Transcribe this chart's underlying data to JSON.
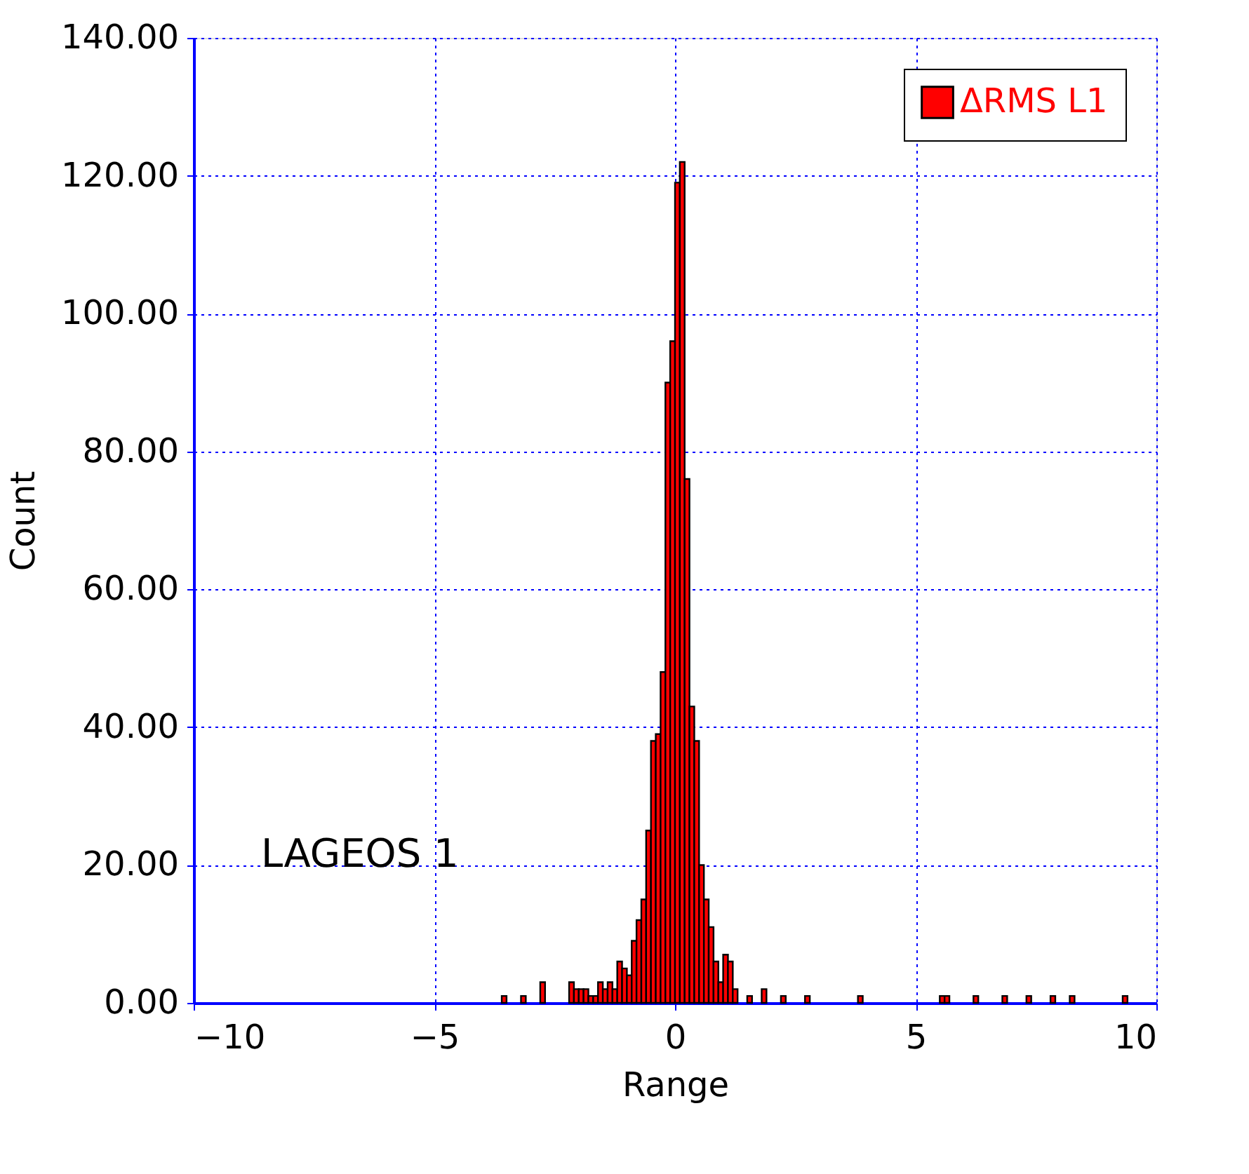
{
  "chart_data": {
    "type": "histogram",
    "xlabel": "Range",
    "ylabel": "Count",
    "bins": [
      -3.6,
      -3.5,
      -3.2,
      -3.1,
      -2.8,
      -2.7,
      -2.2,
      -2.1,
      -2.0,
      -1.9,
      -1.8,
      -1.7,
      -1.6,
      -1.5,
      -1.4,
      -1.3,
      -1.2,
      -1.1,
      -1.0,
      -0.9,
      -0.8,
      -0.7,
      -0.6,
      -0.5,
      -0.4,
      -0.3,
      -0.2,
      -0.1,
      0.0,
      0.1,
      0.2,
      0.3,
      0.4,
      0.5,
      0.6,
      0.7,
      0.8,
      0.9,
      1.0,
      1.1,
      1.2,
      1.3,
      1.5,
      1.6,
      1.8,
      1.9,
      2.2,
      2.3,
      2.7,
      2.8,
      3.8,
      3.9,
      5.5,
      5.6,
      5.7,
      6.2,
      6.3,
      6.8,
      6.9,
      7.3,
      7.4,
      7.8,
      7.9,
      8.2,
      8.3,
      9.3,
      9.4
    ],
    "series": [
      {
        "name": "ΔRMS L1",
        "color": "#ff0000",
        "values": [
          1,
          0,
          1,
          0,
          3,
          0,
          3,
          2,
          2,
          2,
          1,
          1,
          3,
          2,
          3,
          2,
          6,
          5,
          4,
          9,
          12,
          15,
          25,
          38,
          39,
          48,
          90,
          96,
          119,
          122,
          76,
          43,
          38,
          20,
          15,
          11,
          6,
          3,
          7,
          6,
          2,
          0,
          1,
          0,
          2,
          0,
          1,
          0,
          1,
          0,
          1,
          0,
          1,
          1,
          0,
          1,
          0,
          1,
          0,
          1,
          0,
          1,
          0,
          1,
          0,
          1
        ]
      }
    ],
    "xlim": [
      -10,
      10
    ],
    "xticks": [
      -10,
      -5,
      0,
      5,
      10
    ],
    "ylim": [
      0,
      140
    ],
    "yticks": [
      {
        "value": 0,
        "label": "0.00"
      },
      {
        "value": 20,
        "label": "20.00"
      },
      {
        "value": 40,
        "label": "40.00"
      },
      {
        "value": 60,
        "label": "60.00"
      },
      {
        "value": 80,
        "label": "80.00"
      },
      {
        "value": 100,
        "label": "100.00"
      },
      {
        "value": 120,
        "label": "120.00"
      },
      {
        "value": 140,
        "label": "140.00"
      }
    ],
    "grid": true,
    "legend": "top right",
    "annotations": [
      "LAGEOS 1"
    ]
  }
}
